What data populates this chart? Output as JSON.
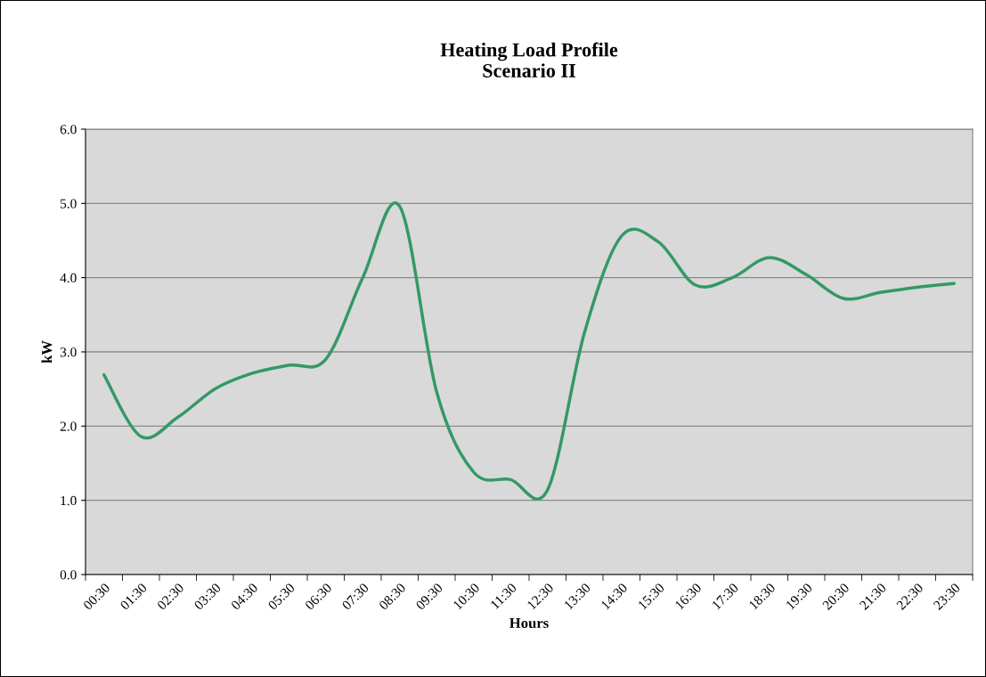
{
  "chart_data": {
    "type": "line",
    "title": "Heating Load Profile\nScenario II",
    "xlabel": "Hours",
    "ylabel": "kW",
    "categories": [
      "00:30",
      "01:30",
      "02:30",
      "03:30",
      "04:30",
      "05:30",
      "06:30",
      "07:30",
      "08:30",
      "09:30",
      "10:30",
      "11:30",
      "12:30",
      "13:30",
      "14:30",
      "15:30",
      "16:30",
      "17:30",
      "18:30",
      "19:30",
      "20:30",
      "21:30",
      "22:30",
      "23:30"
    ],
    "series": [
      {
        "color": "#339966",
        "values": [
          2.69,
          1.86,
          2.12,
          2.5,
          2.71,
          2.82,
          2.9,
          4.0,
          4.96,
          2.46,
          1.38,
          1.28,
          1.14,
          3.26,
          4.56,
          4.48,
          3.9,
          4.0,
          4.27,
          4.04,
          3.72,
          3.8,
          3.87,
          3.92
        ]
      }
    ],
    "ylim": [
      0,
      6
    ],
    "yticks": [
      {
        "value": 0,
        "label": "0.0"
      },
      {
        "value": 1,
        "label": "1.0"
      },
      {
        "value": 2,
        "label": "2.0"
      },
      {
        "value": 3,
        "label": "3.0"
      },
      {
        "value": 4,
        "label": "4.0"
      },
      {
        "value": 5,
        "label": "5.0"
      },
      {
        "value": 6,
        "label": "6.0"
      }
    ],
    "grid": "y",
    "marker": "none",
    "line_style": "solid"
  }
}
